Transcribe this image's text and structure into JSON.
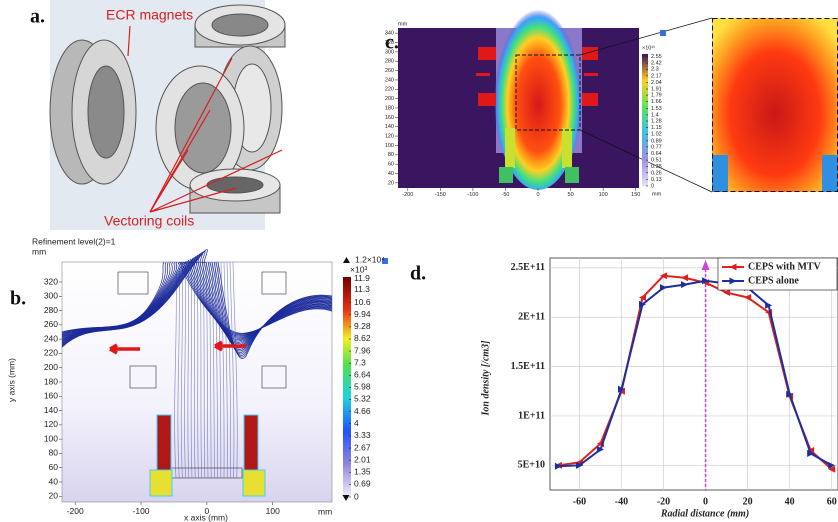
{
  "figure": {
    "panel_a": {
      "label": "a.",
      "annotations": [
        "ECR magnets",
        "Vectoring coils"
      ]
    }
  },
  "chart_data": [
    {
      "type": "heatmap",
      "panel_label": "b.",
      "title": "Refinement level(2)=1",
      "y_unit": "mm",
      "x_unit": "mm",
      "xlabel": "x axis (mm)",
      "ylabel": "y axis (mm)",
      "xlim": [
        -220,
        190
      ],
      "ylim": [
        12,
        348
      ],
      "xticks": [
        -200,
        -100,
        0,
        100
      ],
      "yticks": [
        20,
        40,
        60,
        80,
        100,
        120,
        140,
        160,
        180,
        200,
        220,
        240,
        260,
        280,
        300,
        320
      ],
      "colorbar": {
        "max_label": "1.2×10⁴",
        "multiplier": "×10³",
        "clim": [
          0,
          12
        ],
        "ticks": [
          11.9,
          11.3,
          10.6,
          9.94,
          9.28,
          8.62,
          7.96,
          7.3,
          6.64,
          5.98,
          5.32,
          4.66,
          4,
          3.33,
          2.67,
          2.01,
          1.35,
          0.69,
          0
        ]
      }
    },
    {
      "type": "heatmap",
      "panel_label": "c.",
      "y_unit": "mm",
      "x_unit": "mm",
      "xlim": [
        -215,
        155
      ],
      "ylim": [
        9,
        351
      ],
      "xticks": [
        -200,
        -150,
        -100,
        -50,
        0,
        50,
        100,
        150
      ],
      "yticks": [
        20,
        40,
        60,
        80,
        100,
        120,
        140,
        160,
        180,
        200,
        220,
        240,
        260,
        280,
        300,
        320,
        340
      ],
      "colorbar": {
        "multiplier": "×10¹¹",
        "clim": [
          0,
          2.6
        ],
        "ticks": [
          2.55,
          2.42,
          2.3,
          2.17,
          2.04,
          1.91,
          1.79,
          1.66,
          1.53,
          1.4,
          1.28,
          1.15,
          1.02,
          0.89,
          0.77,
          0.64,
          0.51,
          0.38,
          0.26,
          0.13,
          0
        ]
      }
    },
    {
      "type": "line",
      "panel_label": "d.",
      "xlabel": "Radial distance (mm)",
      "ylabel": "Ion density [/cm3]",
      "x": [
        -70,
        -60,
        -50,
        -40,
        -30,
        -20,
        -10,
        0,
        10,
        20,
        30,
        40,
        50,
        60
      ],
      "series": [
        {
          "name": "CEPS with MTV",
          "color": "#e0201c",
          "values": [
            50000000000,
            53000000000,
            72000000000,
            125000000000,
            220000000000,
            242000000000,
            240000000000,
            235000000000,
            225000000000,
            220000000000,
            205000000000,
            120000000000,
            65000000000,
            46000000000
          ]
        },
        {
          "name": "CEPS alone",
          "color": "#1a2fa0",
          "values": [
            49000000000,
            50000000000,
            66000000000,
            127000000000,
            213000000000,
            230000000000,
            233000000000,
            237000000000,
            234000000000,
            230000000000,
            212000000000,
            122000000000,
            62000000000,
            50000000000
          ]
        }
      ],
      "xlim": [
        -74,
        63
      ],
      "ylim": [
        25000000000,
        260000000000
      ],
      "xticks": [
        -60,
        -40,
        -20,
        0,
        20,
        40,
        60
      ],
      "yticks": [
        {
          "value": 50000000000,
          "label": "5E+10"
        },
        {
          "value": 100000000000,
          "label": "1E+11"
        },
        {
          "value": 150000000000,
          "label": "1.5E+11"
        },
        {
          "value": 200000000000,
          "label": "2E+11"
        },
        {
          "value": 250000000000,
          "label": "2.5E+11"
        }
      ],
      "grid": true,
      "legend": "upper right",
      "vline": 0,
      "vline_color": "#cc44dd"
    }
  ]
}
